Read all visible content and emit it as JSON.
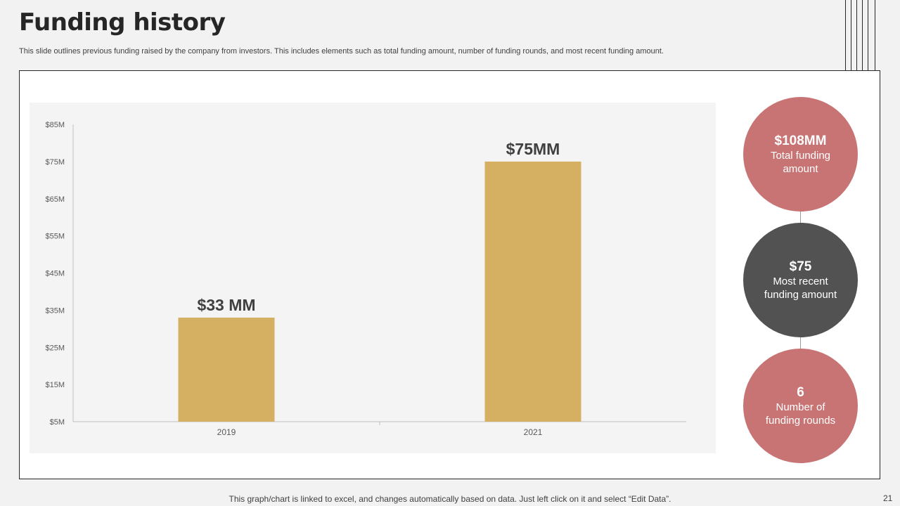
{
  "slide": {
    "title": "Funding history",
    "subtitle": "This slide outlines previous funding raised by the company from investors. This includes elements such as total funding amount, number of funding rounds, and most recent funding amount.",
    "footer_note": "This graph/chart is linked to excel, and changes automatically based on data. Just left click on it and select “Edit Data”.",
    "page_number": "21"
  },
  "stats": [
    {
      "value": "$108MM",
      "label": "Total funding amount",
      "color": "#c97474"
    },
    {
      "value": "$75",
      "label": "Most recent funding amount",
      "color": "#525252"
    },
    {
      "value": "6",
      "label": "Number of funding rounds",
      "color": "#c97474"
    }
  ],
  "chart_data": {
    "type": "bar",
    "categories": [
      "2019",
      "2021"
    ],
    "values": [
      33,
      75
    ],
    "data_labels": [
      "$33 MM",
      "$75MM"
    ],
    "y_ticks": [
      "$5M",
      "$15M",
      "$25M",
      "$35M",
      "$45M",
      "$55M",
      "$65M",
      "$75M",
      "$85M"
    ],
    "ylim": [
      5,
      85
    ],
    "title": "",
    "xlabel": "",
    "ylabel": "",
    "grid": false,
    "bar_color": "#d6b062"
  }
}
